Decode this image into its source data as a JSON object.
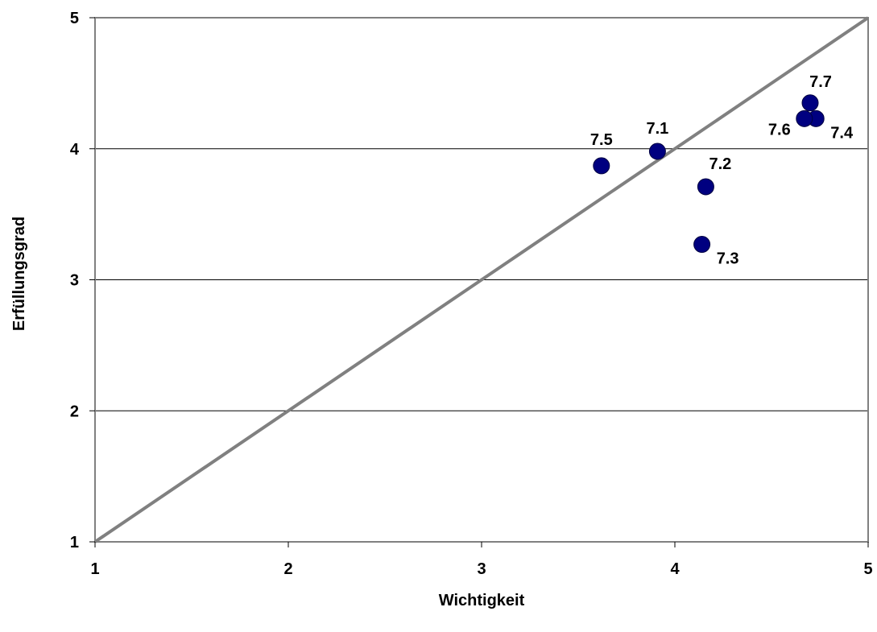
{
  "chart_data": {
    "type": "scatter",
    "title": "",
    "xlabel": "Wichtigkeit",
    "ylabel": "Erfüllungsgrad",
    "xlim": [
      1,
      5
    ],
    "ylim": [
      1,
      5
    ],
    "x_ticks": [
      "1",
      "2",
      "3",
      "4",
      "5"
    ],
    "y_ticks": [
      "1",
      "2",
      "3",
      "4",
      "5"
    ],
    "grid": "horizontal",
    "legend": "none",
    "diagonal_reference_line": {
      "from": [
        1,
        1
      ],
      "to": [
        5,
        5
      ],
      "color": "#808080"
    },
    "marker_color": "#000080",
    "points": [
      {
        "label": "7.1",
        "x": 3.91,
        "y": 3.98
      },
      {
        "label": "7.2",
        "x": 4.16,
        "y": 3.71
      },
      {
        "label": "7.3",
        "x": 4.14,
        "y": 3.27
      },
      {
        "label": "7.4",
        "x": 4.73,
        "y": 4.23
      },
      {
        "label": "7.5",
        "x": 3.62,
        "y": 3.87
      },
      {
        "label": "7.6",
        "x": 4.67,
        "y": 4.23
      },
      {
        "label": "7.7",
        "x": 4.7,
        "y": 4.35
      }
    ]
  }
}
